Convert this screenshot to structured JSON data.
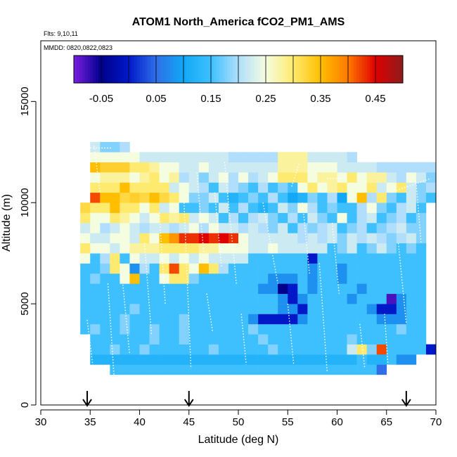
{
  "chart_data": {
    "type": "heatmap",
    "title": "ATOM1 North_America fCO2_PM1_AMS",
    "notes": [
      "Flts: 9,10,11",
      "MMDD: 0820,0822,0823"
    ],
    "xlabel": "Latitude (deg N)",
    "ylabel": "Altitude (m)",
    "xlim": [
      30,
      70
    ],
    "ylim": [
      0,
      18000
    ],
    "xticks": [
      "30",
      "35",
      "40",
      "45",
      "50",
      "55",
      "60",
      "65",
      "70"
    ],
    "yticks": [
      "0",
      "5000",
      "10000",
      "15000"
    ],
    "colorbar": {
      "range": [
        -0.1,
        0.5
      ],
      "ticks": [
        "-0.05",
        "0.05",
        "0.15",
        "0.25",
        "0.35",
        "0.45"
      ],
      "tick_values": [
        -0.05,
        0.05,
        0.15,
        0.25,
        0.35,
        0.45
      ],
      "colors": [
        "#7a1ee0",
        "#00008c",
        "#0018c8",
        "#2f6ee8",
        "#12a8f5",
        "#3ec0ff",
        "#b0defc",
        "#f4fde0",
        "#ffea70",
        "#ffbe00",
        "#ff7a00",
        "#e00000",
        "#8c1c1c"
      ]
    },
    "grid": false,
    "arrows_lat": [
      34.7,
      45,
      67
    ],
    "flight_track": "white dotted profiles",
    "cell_size": {
      "lat": 1,
      "alt": 500
    },
    "rows": [
      {
        "alt": 1500,
        "lat0": 37,
        "values": [
          0.15,
          0.15,
          0.15,
          0.15,
          0.15,
          0.15,
          0.15,
          0.15,
          0.15,
          0.15,
          0.15,
          0.15,
          0.15,
          0.15,
          0.15,
          0.15,
          0.15,
          0.15,
          0.15,
          0.15,
          0.15,
          0.15,
          0.15,
          0.15,
          0.15,
          0.15,
          0.15,
          0.05
        ]
      },
      {
        "alt": 2000,
        "lat0": 35,
        "values": [
          0.12,
          0.12,
          0.12,
          0.12,
          0.12,
          0.12,
          0.12,
          0.12,
          0.12,
          0.12,
          0.12,
          0.12,
          0.12,
          0.12,
          0.12,
          0.12,
          0.12,
          0.12,
          0.12,
          0.12,
          0.12,
          0.12,
          0.12,
          0.12,
          0.12,
          0.12,
          0.12,
          0.15,
          0.12,
          0.12,
          0.15,
          0.08,
          0.08
        ]
      },
      {
        "alt": 2500,
        "lat0": 35,
        "values": [
          0.15,
          0.15,
          0.18,
          0.15,
          0.15,
          0.18,
          0.15,
          0.15,
          0.15,
          0.15,
          0.15,
          0.15,
          0.18,
          0.15,
          0.15,
          0.15,
          0.15,
          0.15,
          0.18,
          0.15,
          0.15,
          0.15,
          0.15,
          0.15,
          0.15,
          0.15,
          0.22,
          0.3,
          0.18,
          0.42,
          0.15,
          0.15,
          0.15,
          0.15,
          0.0
        ]
      },
      {
        "alt": 3000,
        "lat0": 35,
        "values": [
          0.15,
          0.15,
          0.15,
          0.15,
          0.15,
          0.15,
          0.18,
          0.15,
          0.15,
          0.18,
          0.15,
          0.15,
          0.15,
          0.15,
          0.15,
          0.15,
          0.15,
          0.18,
          0.15,
          0.15,
          0.15,
          0.15,
          0.15,
          0.15,
          0.15,
          0.15,
          0.18,
          0.15,
          0.15,
          0.15,
          0.15,
          0.15,
          0.15,
          0.15
        ]
      },
      {
        "alt": 3500,
        "lat0": 34,
        "values": [
          0.15,
          0.18,
          0.15,
          0.15,
          0.18,
          0.15,
          0.15,
          0.18,
          0.15,
          0.15,
          0.18,
          0.15,
          0.15,
          0.15,
          0.15,
          0.15,
          0.15,
          0.18,
          0.15,
          0.15,
          0.15,
          0.15,
          0.15,
          0.15,
          0.15,
          0.15,
          0.15,
          0.15,
          0.15,
          0.15,
          0.15,
          0.15,
          0.18,
          0.15,
          0.15
        ]
      },
      {
        "alt": 4000,
        "lat0": 34,
        "values": [
          0.15,
          0.15,
          0.15,
          0.15,
          0.18,
          0.15,
          0.15,
          0.15,
          0.15,
          0.15,
          0.18,
          0.15,
          0.15,
          0.15,
          0.15,
          0.15,
          0.15,
          0.08,
          0.0,
          0.0,
          0.0,
          0.0,
          0.08,
          0.15,
          0.15,
          0.15,
          0.15,
          0.15,
          0.15,
          0.15,
          0.08,
          0.08,
          0.08,
          0.15,
          0.15
        ]
      },
      {
        "alt": 4500,
        "lat0": 34,
        "values": [
          0.15,
          0.15,
          0.15,
          0.15,
          0.15,
          0.18,
          0.15,
          0.15,
          0.15,
          0.15,
          0.15,
          0.15,
          0.15,
          0.15,
          0.15,
          0.15,
          0.15,
          0.15,
          0.15,
          0.15,
          0.08,
          0.08,
          0.0,
          0.15,
          0.15,
          0.15,
          0.15,
          0.15,
          0.15,
          0.08,
          0.0,
          0.0,
          0.08,
          0.15,
          0.15
        ]
      },
      {
        "alt": 5000,
        "lat0": 34,
        "values": [
          0.15,
          0.15,
          0.15,
          0.15,
          0.15,
          0.15,
          0.15,
          0.15,
          0.15,
          0.15,
          0.15,
          0.15,
          0.15,
          0.15,
          0.15,
          0.15,
          0.15,
          0.15,
          0.15,
          0.15,
          0.08,
          0.0,
          0.08,
          0.15,
          0.15,
          0.15,
          0.15,
          0.08,
          0.15,
          0.15,
          0.15,
          -0.08,
          0.08,
          0.15,
          0.15
        ]
      },
      {
        "alt": 5500,
        "lat0": 34,
        "values": [
          0.15,
          0.15,
          0.15,
          0.15,
          0.15,
          0.15,
          0.15,
          0.15,
          0.15,
          0.15,
          0.15,
          0.15,
          0.15,
          0.15,
          0.15,
          0.15,
          0.15,
          0.15,
          0.08,
          0.08,
          -0.05,
          0.0,
          0.15,
          0.08,
          0.15,
          0.15,
          0.15,
          0.15,
          0.08,
          0.15,
          0.15,
          0.15,
          0.15,
          0.15,
          0.15
        ]
      },
      {
        "alt": 6000,
        "lat0": 34,
        "values": [
          0.15,
          0.18,
          0.15,
          0.15,
          0.25,
          0.35,
          0.15,
          0.15,
          0.25,
          0.3,
          0.3,
          0.18,
          0.15,
          0.15,
          0.15,
          0.15,
          0.15,
          0.15,
          0.15,
          0.08,
          0.08,
          0.08,
          0.15,
          0.08,
          0.15,
          0.15,
          0.08,
          0.15,
          0.15,
          0.15,
          0.15,
          0.15,
          0.15,
          0.15,
          0.15
        ]
      },
      {
        "alt": 6500,
        "lat0": 34,
        "values": [
          0.15,
          0.15,
          0.18,
          0.3,
          0.25,
          0.08,
          0.2,
          0.15,
          0.3,
          0.42,
          0.3,
          0.25,
          0.35,
          0.3,
          0.2,
          0.15,
          0.15,
          0.15,
          0.15,
          0.15,
          0.15,
          0.15,
          0.15,
          0.08,
          0.15,
          0.15,
          0.08,
          0.15,
          0.15,
          0.15,
          0.15,
          0.15,
          0.15,
          0.15,
          0.15
        ]
      },
      {
        "alt": 7000,
        "lat0": 34,
        "values": [
          0.25,
          0.15,
          0.2,
          0.3,
          0.15,
          0.25,
          0.22,
          0.22,
          0.25,
          0.22,
          0.25,
          0.22,
          0.25,
          0.22,
          0.22,
          0.22,
          0.22,
          0.15,
          0.15,
          0.15,
          0.15,
          0.15,
          0.15,
          0.0,
          0.15,
          0.15,
          0.15,
          0.15,
          0.15,
          0.15,
          0.15,
          0.15,
          0.15,
          0.15,
          0.15
        ]
      },
      {
        "alt": 7500,
        "lat0": 34,
        "values": [
          0.3,
          0.25,
          0.25,
          0.22,
          0.25,
          0.28,
          0.28,
          0.28,
          0.3,
          0.3,
          0.3,
          0.3,
          0.28,
          0.28,
          0.25,
          0.25,
          0.25,
          0.22,
          0.22,
          0.25,
          0.22,
          0.22,
          0.22,
          0.22,
          0.22,
          0.15,
          0.18,
          0.22,
          0.15,
          0.18,
          0.22,
          0.18,
          0.15,
          0.18,
          0.15
        ]
      },
      {
        "alt": 8000,
        "lat0": 34,
        "values": [
          0.25,
          0.22,
          0.22,
          0.25,
          0.25,
          0.22,
          0.3,
          0.25,
          0.35,
          0.38,
          0.43,
          0.43,
          0.45,
          0.43,
          0.45,
          0.43,
          0.25,
          0.22,
          0.22,
          0.22,
          0.22,
          0.22,
          0.2,
          0.22,
          0.2,
          0.22,
          0.18,
          0.22,
          0.2,
          0.22,
          0.2,
          0.18,
          0.2,
          0.22,
          0.18
        ]
      },
      {
        "alt": 8500,
        "lat0": 34,
        "values": [
          0.22,
          0.25,
          0.2,
          0.22,
          0.25,
          0.22,
          0.2,
          0.22,
          0.22,
          0.2,
          0.22,
          0.25,
          0.2,
          0.25,
          0.22,
          0.22,
          0.2,
          0.22,
          0.2,
          0.18,
          0.22,
          0.15,
          0.2,
          0.18,
          0.2,
          0.22,
          0.15,
          0.18,
          0.2,
          0.15,
          0.18,
          0.2,
          0.22,
          0.18,
          0.18
        ]
      },
      {
        "alt": 9000,
        "lat0": 34,
        "values": [
          0.3,
          0.25,
          0.25,
          0.3,
          0.28,
          0.25,
          0.22,
          0.25,
          0.3,
          0.28,
          0.3,
          0.22,
          0.25,
          0.22,
          0.15,
          0.2,
          0.15,
          0.2,
          0.22,
          0.18,
          0.15,
          0.2,
          0.15,
          0.22,
          0.18,
          0.15,
          0.25,
          0.15,
          0.2,
          0.22,
          0.15,
          0.18,
          0.2,
          0.15,
          0.18
        ]
      },
      {
        "alt": 9500,
        "lat0": 34,
        "values": [
          0.32,
          0.3,
          0.3,
          0.35,
          0.3,
          0.3,
          0.25,
          0.3,
          0.22,
          0.25,
          0.15,
          0.15,
          0.18,
          0.15,
          0.22,
          0.15,
          0.2,
          0.15,
          0.12,
          0.15,
          0.22,
          0.18,
          0.25,
          0.2,
          0.15,
          0.18,
          0.15,
          0.15,
          0.2,
          0.25,
          0.18,
          0.15,
          0.2,
          0.22,
          0.15
        ]
      },
      {
        "alt": 10000,
        "lat0": 35,
        "values": [
          0.42,
          0.35,
          0.35,
          0.32,
          0.33,
          0.32,
          0.35,
          0.32,
          0.3,
          0.25,
          0.18,
          0.18,
          0.22,
          0.15,
          0.12,
          0.15,
          0.18,
          0.15,
          0.2,
          0.15,
          0.1,
          0.12,
          0.18,
          0.15,
          0.2,
          0.1,
          0.25,
          0.35,
          0.2,
          0.3,
          0.18,
          0.15,
          0.22,
          0.18,
          0.15
        ]
      },
      {
        "alt": 10500,
        "lat0": 35,
        "values": [
          0.3,
          0.3,
          0.3,
          0.35,
          0.3,
          0.3,
          0.3,
          0.3,
          0.22,
          0.25,
          0.22,
          0.2,
          0.15,
          0.22,
          0.2,
          0.18,
          0.15,
          0.2,
          0.15,
          0.18,
          0.15,
          0.25,
          0.3,
          0.25,
          0.28,
          0.3,
          0.25,
          0.25,
          0.3,
          0.22,
          0.25,
          0.3,
          0.22,
          0.18,
          0.2
        ]
      },
      {
        "alt": 11000,
        "lat0": 35,
        "values": [
          0.25,
          0.28,
          0.28,
          0.28,
          0.25,
          0.28,
          0.3,
          0.25,
          0.28,
          0.2,
          0.22,
          0.18,
          0.22,
          0.25,
          0.2,
          0.25,
          0.2,
          0.22,
          0.25,
          0.3,
          0.3,
          0.3,
          0.25,
          0.28,
          0.28,
          0.25,
          0.3,
          0.25,
          0.28,
          0.28,
          0.22,
          0.2,
          0.25,
          0.22,
          0.18
        ]
      },
      {
        "alt": 11500,
        "lat0": 35,
        "values": [
          0.35,
          0.33,
          0.33,
          0.33,
          0.3,
          0.3,
          0.28,
          0.25,
          0.25,
          0.22,
          0.22,
          0.25,
          0.22,
          0.22,
          0.22,
          0.22,
          0.22,
          0.22,
          0.22,
          0.28,
          0.28,
          0.28,
          0.25,
          0.25,
          0.25,
          0.22,
          0.22,
          0.22,
          0.22,
          0.2,
          0.2,
          0.2,
          0.2,
          0.2,
          0.2
        ]
      },
      {
        "alt": 12000,
        "lat0": 35,
        "values": [
          0.25,
          0.25,
          0.25,
          0.25,
          0.25,
          0.22,
          0.22,
          0.22,
          0.22,
          0.22,
          0.22,
          0.22,
          0.22,
          0.22,
          0.2,
          0.2,
          0.2,
          0.2,
          0.2,
          0.28,
          0.28,
          0.28,
          0.22,
          0.22,
          0.22,
          0.22,
          0.2
        ]
      },
      {
        "alt": 12500,
        "lat0": 35,
        "values": [
          0.22,
          0.18,
          0.18,
          0.2
        ]
      }
    ]
  }
}
